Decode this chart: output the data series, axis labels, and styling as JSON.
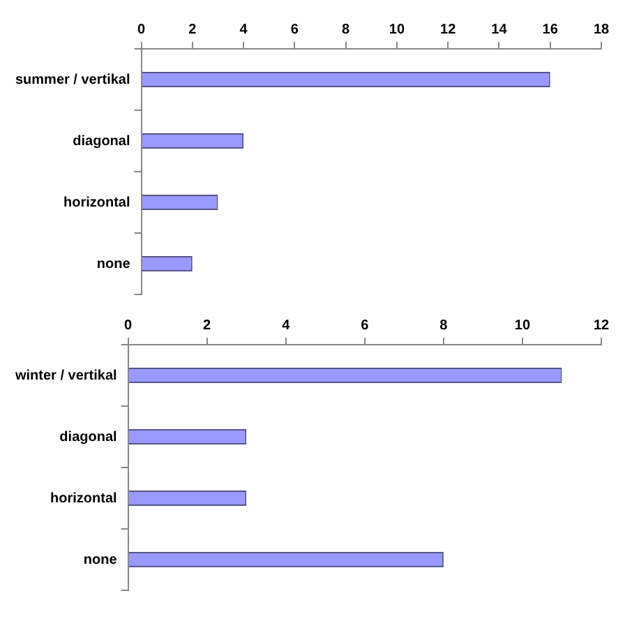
{
  "chart_data": [
    {
      "type": "bar",
      "orientation": "horizontal",
      "categories": [
        "summer / vertikal",
        "diagonal",
        "horizontal",
        "none"
      ],
      "values": [
        16,
        4,
        3,
        2
      ],
      "color": "#9999ff",
      "xlim": [
        0,
        18
      ],
      "xticks": [
        0,
        2,
        4,
        6,
        8,
        10,
        12,
        14,
        16,
        18
      ]
    },
    {
      "type": "bar",
      "orientation": "horizontal",
      "categories": [
        "winter / vertikal",
        "diagonal",
        "horizontal",
        "none"
      ],
      "values": [
        11,
        3,
        3,
        8
      ],
      "color": "#9999ff",
      "xlim": [
        0,
        12
      ],
      "xticks": [
        0,
        2,
        4,
        6,
        8,
        10,
        12
      ]
    }
  ]
}
